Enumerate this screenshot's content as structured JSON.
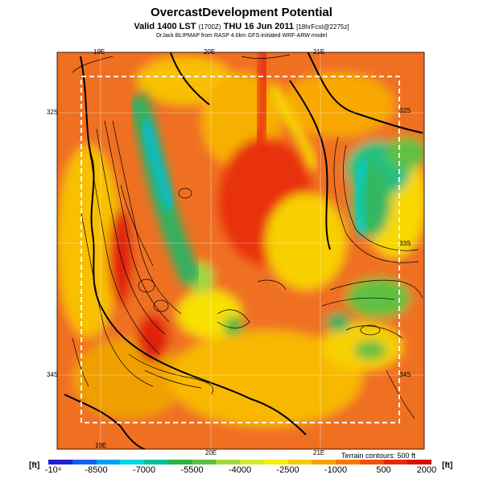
{
  "header": {
    "title": "OvercastDevelopment Potential",
    "valid_prefix": "Valid 1400 LST",
    "valid_small1": "(1700Z)",
    "valid_date": "THU 16 Jun 2011",
    "valid_small2": "[18hrFcst@2275z]",
    "credit": "DrJack BLIPMAP from RASP 4.0km GFS-initiated WRF-ARW model"
  },
  "map": {
    "lon_labels": [
      "19E",
      "20E",
      "21E"
    ],
    "lat_labels": [
      "32S",
      "33S",
      "34S"
    ],
    "contour_note": "Terrain contours: 500 ft"
  },
  "legend": {
    "unit_left": "[ft]",
    "unit_right": "[ft]",
    "tick_labels": [
      "-10⁴",
      "-8500",
      "-7000",
      "-5500",
      "-4000",
      "-2500",
      "-1000",
      "500",
      "2000"
    ],
    "colors": [
      "#2020d0",
      "#1060f0",
      "#00a0f0",
      "#00d8e0",
      "#00c0a0",
      "#30b040",
      "#60c040",
      "#a0d840",
      "#d8e830",
      "#f8f000",
      "#f8c800",
      "#f8a000",
      "#f87800",
      "#f05000",
      "#e82800",
      "#d81000"
    ]
  }
}
